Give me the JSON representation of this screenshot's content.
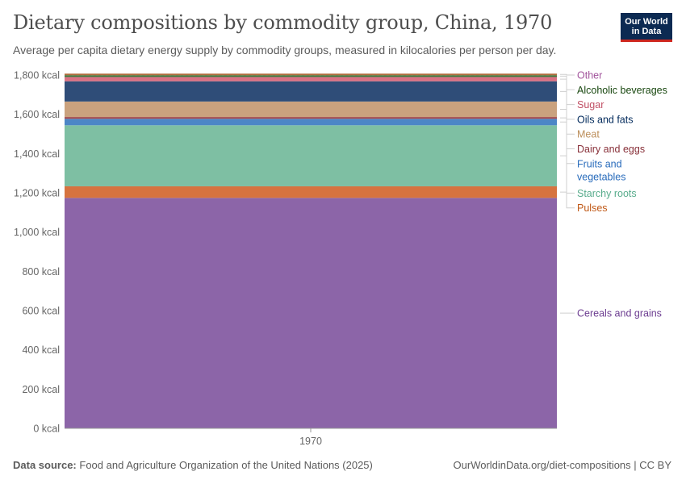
{
  "header": {
    "title": "Dietary compositions by commodity group, China, 1970",
    "subtitle": "Average per capita dietary energy supply by commodity groups, measured in kilocalories per person per day."
  },
  "logo": {
    "line1": "Our World",
    "line2": "in Data"
  },
  "footer": {
    "source_label": "Data source:",
    "source_text": "Food and Agriculture Organization of the United Nations (2025)",
    "url": "OurWorldinData.org/diet-compositions | CC BY"
  },
  "chart_data": {
    "type": "area",
    "stacked": true,
    "x": [
      "1970"
    ],
    "ylim": [
      0,
      1800
    ],
    "yticks": [
      0,
      200,
      400,
      600,
      800,
      1000,
      1200,
      1400,
      1600,
      1800
    ],
    "ytick_labels": [
      "0 kcal",
      "200 kcal",
      "400 kcal",
      "600 kcal",
      "800 kcal",
      "1,000 kcal",
      "1,200 kcal",
      "1,400 kcal",
      "1,600 kcal",
      "1,800 kcal"
    ],
    "legend_placement": "right",
    "series": [
      {
        "name": "Cereals and grains",
        "values": [
          1174
        ],
        "color": "#8c65a8",
        "label_color": "#6d3e91"
      },
      {
        "name": "Pulses",
        "values": [
          59
        ],
        "color": "#d6733f",
        "label_color": "#c05917"
      },
      {
        "name": "Starchy roots",
        "values": [
          311
        ],
        "color": "#7ebfa3",
        "label_color": "#58ac8c"
      },
      {
        "name": "Fruits and vegetables",
        "values": [
          33
        ],
        "color": "#4c86c6",
        "label_color": "#286bbb"
      },
      {
        "name": "Dairy and eggs",
        "values": [
          9
        ],
        "color": "#a14a4f",
        "label_color": "#883039"
      },
      {
        "name": "Meat",
        "values": [
          79
        ],
        "color": "#caa27e",
        "label_color": "#bc8e5a"
      },
      {
        "name": "Oils and fats",
        "values": [
          103
        ],
        "color": "#2f4d78",
        "label_color": "#00295b"
      },
      {
        "name": "Sugar",
        "values": [
          22
        ],
        "color": "#d97184",
        "label_color": "#c15065"
      },
      {
        "name": "Alcoholic beverages",
        "values": [
          9
        ],
        "color": "#3e7a3d",
        "label_color": "#18470f"
      },
      {
        "name": "Other",
        "values": [
          8
        ],
        "color": "#b16c3c",
        "label_color": "#a2559c"
      }
    ]
  }
}
